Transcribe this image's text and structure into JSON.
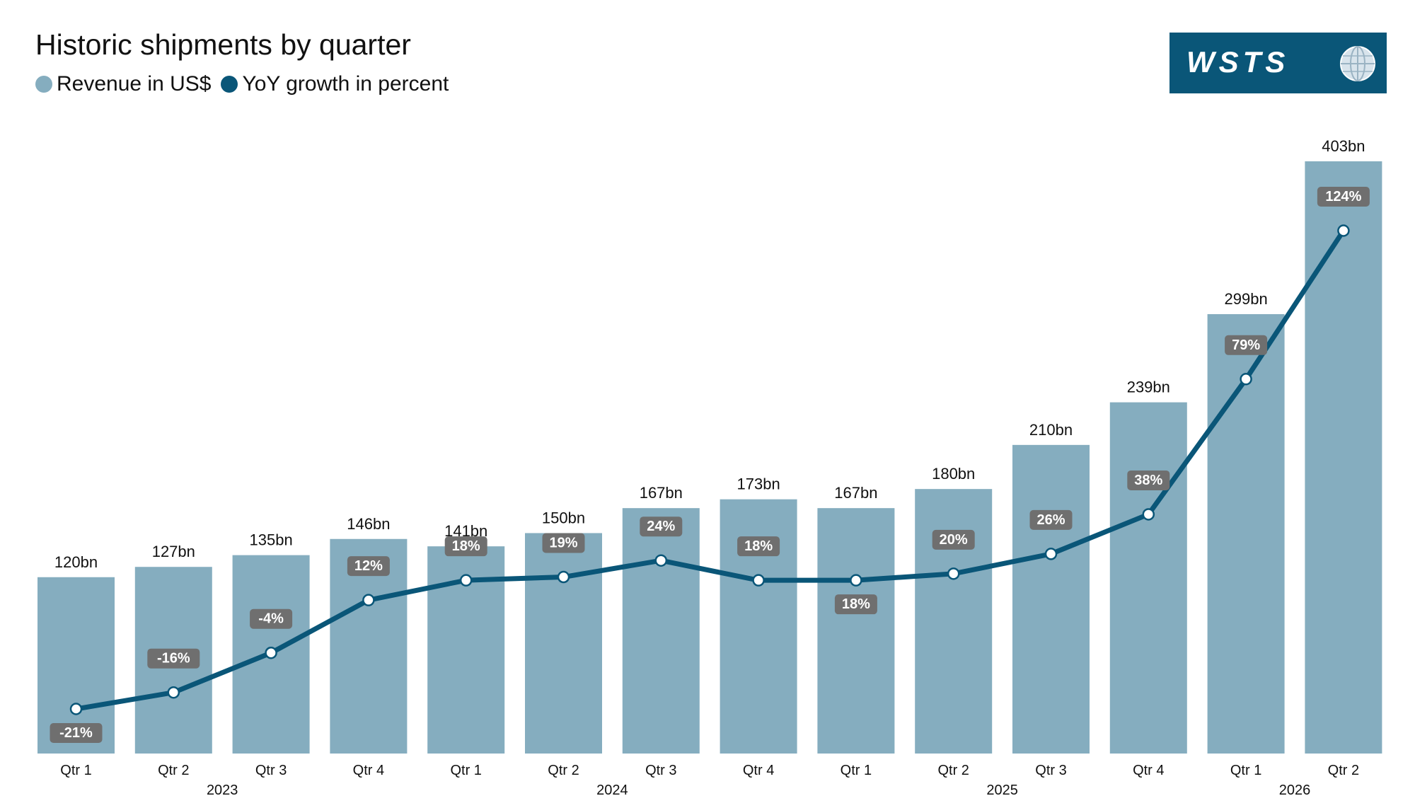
{
  "title": "Historic shipments by quarter",
  "legend": [
    {
      "label": "Revenue in US$",
      "color": "#85adbf"
    },
    {
      "label": "YoY growth in percent",
      "color": "#0a5678"
    }
  ],
  "logo": {
    "text": "WSTS",
    "background": "#0a5678",
    "icon": "globe-icon"
  },
  "colors": {
    "bar": "#85adbf",
    "line": "#0a5678",
    "badge": "#6f6f6f",
    "badge_text": "#ffffff"
  },
  "chart_data": {
    "type": "bar",
    "title": "Historic shipments by quarter",
    "categories": [
      "Qtr 1",
      "Qtr 2",
      "Qtr 3",
      "Qtr 4",
      "Qtr 1",
      "Qtr 2",
      "Qtr 3",
      "Qtr 4",
      "Qtr 1",
      "Qtr 2",
      "Qtr 3",
      "Qtr 4",
      "Qtr 1",
      "Qtr 2"
    ],
    "years": [
      {
        "label": "2023",
        "span": 4
      },
      {
        "label": "2024",
        "span": 4
      },
      {
        "label": "2025",
        "span": 4
      },
      {
        "label": "2026",
        "span": 2
      }
    ],
    "series": [
      {
        "name": "Revenue in US$",
        "type": "bar",
        "values": [
          120,
          127,
          135,
          146,
          141,
          150,
          167,
          173,
          167,
          180,
          210,
          239,
          299,
          403
        ],
        "labels": [
          "120bn",
          "127bn",
          "135bn",
          "146bn",
          "141bn",
          "150bn",
          "167bn",
          "173bn",
          "167bn",
          "180bn",
          "210bn",
          "239bn",
          "299bn",
          "403bn"
        ]
      },
      {
        "name": "YoY growth in percent",
        "type": "line",
        "values": [
          -21,
          -16,
          -4,
          12,
          18,
          19,
          24,
          18,
          18,
          20,
          26,
          38,
          79,
          124
        ],
        "labels": [
          "-21%",
          "-16%",
          "-4%",
          "12%",
          "18%",
          "19%",
          "24%",
          "18%",
          "18%",
          "20%",
          "26%",
          "38%",
          "79%",
          "124%"
        ],
        "label_position": [
          "below",
          "above",
          "above",
          "above",
          "above",
          "above",
          "above",
          "above",
          "below",
          "above",
          "above",
          "above",
          "above",
          "above"
        ]
      }
    ],
    "ylim_revenue": [
      0,
      403
    ],
    "ylim_growth": [
      -30,
      130
    ],
    "grid": false,
    "legend_position": "top-left"
  }
}
